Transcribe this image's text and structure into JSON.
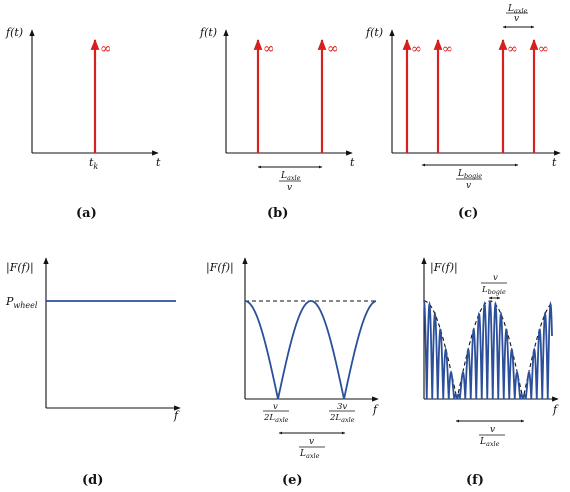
{
  "panels": {
    "a": {
      "caption": "(a)",
      "ylabel": "f(t)",
      "xlabel": "t",
      "tick": "t",
      "tick_sub": "k",
      "impulse_label": "∞"
    },
    "b": {
      "caption": "(b)",
      "ylabel": "f(t)",
      "xlabel": "t",
      "impulse_label": "∞",
      "dim_num": "L",
      "dim_num_sub": "axle",
      "dim_den": "v"
    },
    "c": {
      "caption": "(c)",
      "ylabel": "f(t)",
      "xlabel": "t",
      "impulse_label": "∞",
      "top_dim_num": "L",
      "top_dim_num_sub": "axle",
      "top_dim_den": "v",
      "bottom_dim_num": "L",
      "bottom_dim_num_sub": "bogie",
      "bottom_dim_den": "v"
    },
    "d": {
      "caption": "(d)",
      "ylabel": "|F(f)|",
      "xlabel": "f",
      "level": "P",
      "level_sub": "wheel"
    },
    "e": {
      "caption": "(e)",
      "ylabel": "|F(f)|",
      "xlabel": "f",
      "tick1_num": "v",
      "tick1_den": "2L",
      "tick1_den_sub": "axle",
      "tick2_num": "3v",
      "tick2_den": "2L",
      "tick2_den_sub": "axle",
      "dim_num": "v",
      "dim_den": "L",
      "dim_den_sub": "axle"
    },
    "f": {
      "caption": "(f)",
      "ylabel": "|F(f)|",
      "xlabel": "f",
      "top_num": "v",
      "top_den": "L",
      "top_den_sub": "bogie",
      "dim_num": "v",
      "dim_den": "L",
      "dim_den_sub": "axle"
    }
  },
  "colors": {
    "impulse": "#d62020",
    "spectrum": "#2b4f9a",
    "axis": "#111111"
  }
}
